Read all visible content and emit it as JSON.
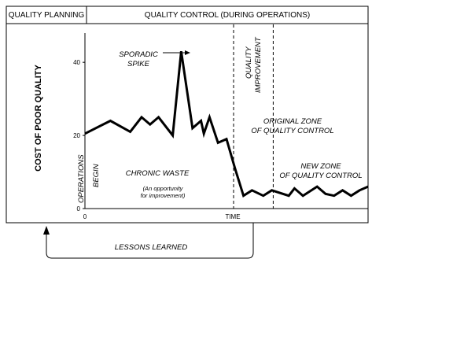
{
  "header": {
    "left": "QUALITY PLANNING",
    "right": "QUALITY CONTROL (DURING OPERATIONS)"
  },
  "annotations": {
    "sporadic_spike_1": "SPORADIC",
    "sporadic_spike_2": "SPIKE",
    "quality_improvement_1": "QUALITY",
    "quality_improvement_2": "IMPROVEMENT",
    "original_zone_1": "ORIGINAL ZONE",
    "original_zone_2": "OF QUALITY CONTROL",
    "new_zone_1": "NEW ZONE",
    "new_zone_2": "OF QUALITY CONTROL",
    "operations_begin_1": "OPERATIONS",
    "operations_begin_2": "BEGIN",
    "chronic_waste": "CHRONIC WASTE",
    "opportunity_1": "(An opportunity",
    "opportunity_2": "for improvement)",
    "lessons_learned": "LESSONS LEARNED"
  },
  "colors": {
    "line": "#000000",
    "background": "#ffffff"
  },
  "chart_data": {
    "type": "line",
    "title": "",
    "xlabel": "TIME",
    "ylabel": "COST OF POOR QUALITY",
    "x_ticks": [
      "0"
    ],
    "y_ticks": [
      0,
      20,
      40
    ],
    "ylim": [
      0,
      48
    ],
    "xlim": [
      0,
      100
    ],
    "series": [
      {
        "x": [
          0,
          9,
          16,
          20,
          23,
          26,
          31,
          34,
          38,
          41,
          42,
          44,
          47,
          50,
          53,
          56,
          59,
          63,
          66,
          72,
          74,
          77,
          82,
          85,
          88,
          91,
          94,
          97,
          100
        ],
        "y": [
          20.5,
          24,
          21,
          25,
          23,
          25,
          20,
          43,
          22,
          24,
          20.5,
          25,
          18,
          19,
          11,
          3.5,
          5,
          3.5,
          5,
          3.5,
          5.5,
          3.5,
          6,
          4,
          3.5,
          5,
          3.5,
          5,
          6
        ]
      }
    ],
    "dividers_x": [
      52.5,
      66.5
    ],
    "grid": false
  }
}
